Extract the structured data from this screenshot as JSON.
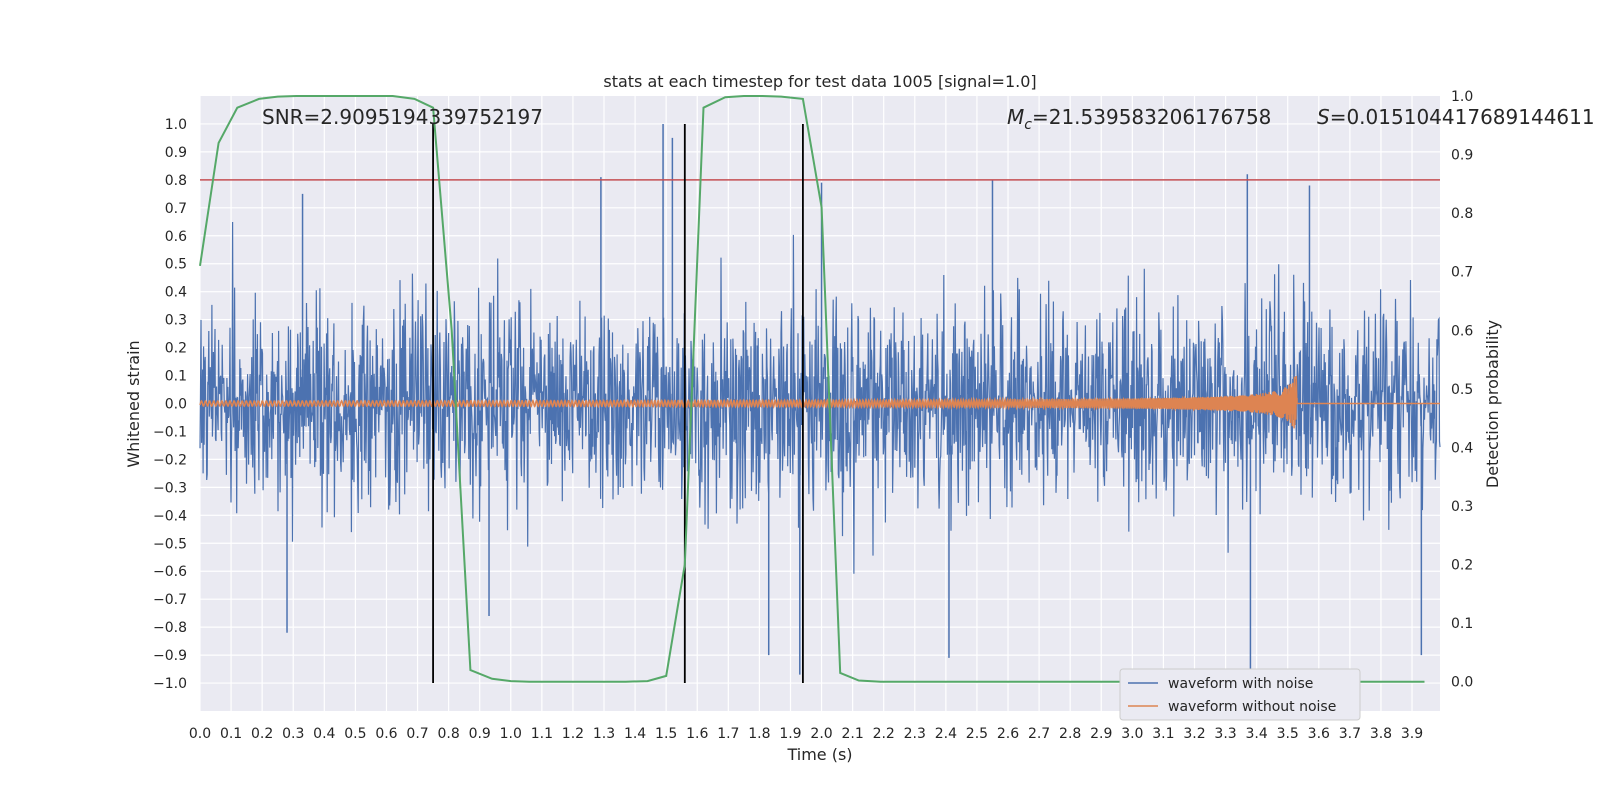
{
  "chart_data": {
    "type": "line",
    "title": "stats at each timestep for test data 1005 [signal=1.0]",
    "xlabel": "Time (s)",
    "ylabel_left": "Whitened strain",
    "ylabel_right": "Detection probability",
    "xlim": [
      0.0,
      3.99
    ],
    "ylim_left": [
      -1.1,
      1.1
    ],
    "ylim_right": [
      -0.05,
      1.0
    ],
    "grid": true,
    "x_ticks": [
      0.0,
      0.1,
      0.2,
      0.3,
      0.4,
      0.5,
      0.6,
      0.7,
      0.8,
      0.9,
      1.0,
      1.1,
      1.2,
      1.3,
      1.4,
      1.5,
      1.6,
      1.7,
      1.8,
      1.9,
      2.0,
      2.1,
      2.2,
      2.3,
      2.4,
      2.5,
      2.6,
      2.7,
      2.8,
      2.9,
      3.0,
      3.1,
      3.2,
      3.3,
      3.4,
      3.5,
      3.6,
      3.7,
      3.8,
      3.9
    ],
    "y_left_ticks": [
      -1.0,
      -0.9,
      -0.8,
      -0.7,
      -0.6,
      -0.5,
      -0.4,
      -0.3,
      -0.2,
      -0.1,
      0.0,
      0.1,
      0.2,
      0.3,
      0.4,
      0.5,
      0.6,
      0.7,
      0.8,
      0.9,
      1.0
    ],
    "y_right_ticks": [
      0.0,
      0.1,
      0.2,
      0.3,
      0.4,
      0.5,
      0.6,
      0.7,
      0.8,
      0.9,
      1.0
    ],
    "annotations": {
      "snr": "SNR=2.9095194339752197",
      "mc_symbol": "M",
      "mc_sub": "c",
      "mc_value": "=21.539583206176758",
      "s_symbol": "S",
      "s_value": "=0.015104417689144611"
    },
    "threshold": {
      "y_left": 0.8,
      "color": "#c44e52"
    },
    "vertical_lines_x": [
      0.75,
      1.56,
      1.94
    ],
    "series": [
      {
        "name": "waveform with noise",
        "color": "#4c72b0",
        "axis": "left",
        "description": "noise samples, amplitude mostly within ±0.4, occasional spikes to ±1.0",
        "noise_amplitude": 0.4,
        "spikes": [
          [
            0.33,
            0.75
          ],
          [
            0.28,
            -0.82
          ],
          [
            1.29,
            0.81
          ],
          [
            1.49,
            1.0
          ],
          [
            1.52,
            0.95
          ],
          [
            1.83,
            -0.9
          ],
          [
            1.93,
            -0.97
          ],
          [
            2.0,
            0.79
          ],
          [
            2.55,
            0.8
          ],
          [
            3.37,
            0.82
          ],
          [
            3.38,
            -0.95
          ],
          [
            3.57,
            0.78
          ],
          [
            3.93,
            -0.9
          ],
          [
            0.93,
            -0.76
          ],
          [
            2.41,
            -0.91
          ]
        ]
      },
      {
        "name": "waveform without noise",
        "color": "#dd8452",
        "axis": "left",
        "description": "chirp signal growing toward merger at ~3.53 s",
        "merger_time": 3.53,
        "peak_amplitude": 0.13
      },
      {
        "name": "detection probability",
        "color": "#55a868",
        "axis": "right",
        "x": [
          0.0,
          0.06,
          0.12,
          0.19,
          0.25,
          0.31,
          0.37,
          0.44,
          0.5,
          0.56,
          0.62,
          0.69,
          0.75,
          0.81,
          0.87,
          0.94,
          1.0,
          1.06,
          1.12,
          1.19,
          1.25,
          1.31,
          1.37,
          1.44,
          1.5,
          1.56,
          1.62,
          1.69,
          1.75,
          1.81,
          1.87,
          1.94,
          2.0,
          2.06,
          2.12,
          2.19,
          2.25,
          2.31,
          2.37,
          2.44,
          2.5,
          2.56,
          2.62,
          2.69,
          2.75,
          2.81,
          2.87,
          2.94,
          3.0,
          3.06,
          3.12,
          3.19,
          3.25,
          3.31,
          3.37,
          3.44,
          3.5,
          3.56,
          3.62,
          3.69,
          3.75,
          3.81,
          3.87,
          3.94
        ],
        "values": [
          0.71,
          0.92,
          0.98,
          0.995,
          0.999,
          1.0,
          1.0,
          1.0,
          1.0,
          1.0,
          1.0,
          0.995,
          0.98,
          0.6,
          0.02,
          0.005,
          0.001,
          0.0,
          0.0,
          0.0,
          0.0,
          0.0,
          0.0,
          0.001,
          0.01,
          0.2,
          0.98,
          0.998,
          1.0,
          1.0,
          0.999,
          0.995,
          0.81,
          0.015,
          0.002,
          0.0,
          0.0,
          0.0,
          0.0,
          0.0,
          0.0,
          0.0,
          0.0,
          0.0,
          0.0,
          0.0,
          0.0,
          0.0,
          0.0,
          0.0,
          0.0,
          0.0,
          0.0,
          0.0,
          0.0,
          0.0,
          0.0,
          0.0,
          0.0,
          0.0,
          0.0,
          0.0,
          0.0,
          0.0
        ]
      }
    ],
    "legend": {
      "position": "bottom-right",
      "entries": [
        {
          "label": "waveform with noise",
          "color": "#4c72b0"
        },
        {
          "label": "waveform without noise",
          "color": "#dd8452"
        }
      ]
    }
  }
}
